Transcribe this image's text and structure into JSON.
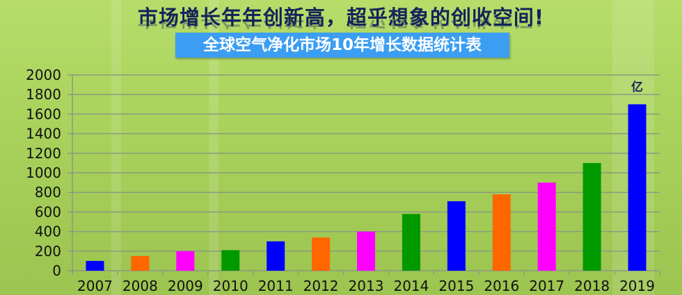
{
  "header": {
    "headline": "市场增长年年创新高，超乎想象的创收空间!",
    "subtitle": "全球空气净化市场10年增长数据统计表"
  },
  "chart_data": {
    "type": "bar",
    "title": "全球空气净化市场10年增长数据统计表",
    "categories": [
      "2007",
      "2008",
      "2009",
      "2010",
      "2011",
      "2012",
      "2013",
      "2014",
      "2015",
      "2016",
      "2017",
      "2018",
      "2019"
    ],
    "values": [
      100,
      150,
      200,
      210,
      300,
      340,
      400,
      580,
      710,
      780,
      900,
      1100,
      1700
    ],
    "colors": [
      "#0000ff",
      "#ff6600",
      "#ff00ff",
      "#009900",
      "#0000ff",
      "#ff6600",
      "#ff00ff",
      "#009900",
      "#0000ff",
      "#ff6600",
      "#ff00ff",
      "#009900",
      "#0000ff"
    ],
    "unit_label": "亿",
    "ylim": [
      0,
      2000
    ],
    "yticks": [
      0,
      200,
      400,
      600,
      800,
      1000,
      1200,
      1400,
      1600,
      1800,
      2000
    ],
    "grid": true,
    "legend": "none"
  }
}
